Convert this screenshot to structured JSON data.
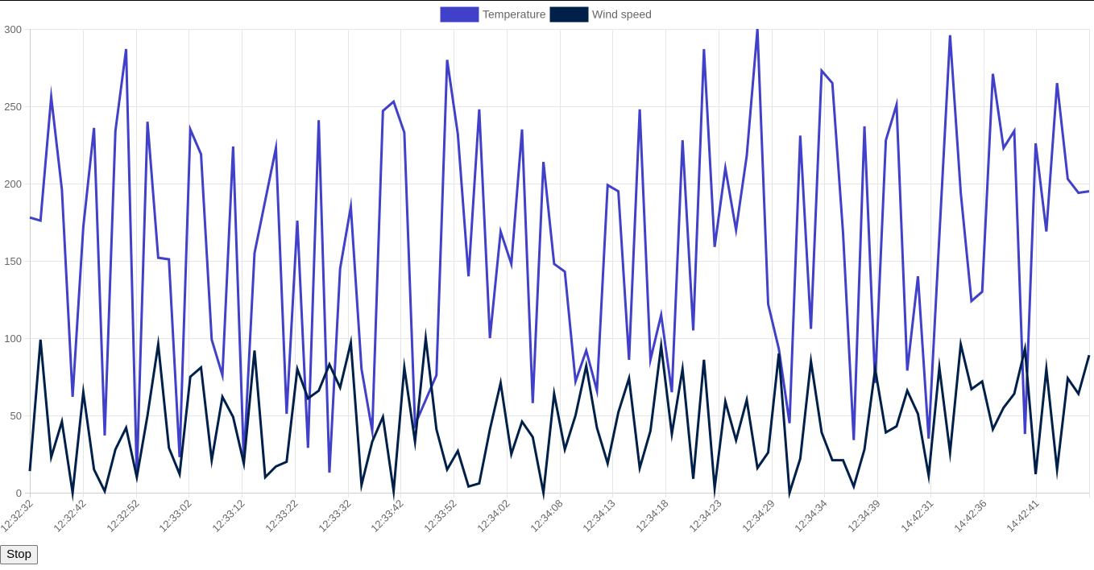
{
  "controls": {
    "stop_label": "Stop"
  },
  "chart_data": {
    "type": "line",
    "legend_position": "top-center",
    "grid": true,
    "ylim": [
      0,
      300
    ],
    "y_ticks": [
      0,
      50,
      100,
      150,
      200,
      250,
      300
    ],
    "x_tick_labels": [
      "12:32:32",
      "12:32:42",
      "12:32:52",
      "12:33:02",
      "12:33:12",
      "12:33:22",
      "12:33:32",
      "12:33:42",
      "12:33:52",
      "12:34:02",
      "12:34:08",
      "12:34:13",
      "12:34:18",
      "12:34:23",
      "12:34:29",
      "12:34:34",
      "12:34:39",
      "14:42:31",
      "14:42:36",
      "14:42:41"
    ],
    "series": [
      {
        "name": "Temperature",
        "color": "#4040c8",
        "values": [
          178,
          176,
          256,
          196,
          62,
          172,
          236,
          37,
          234,
          287,
          11,
          240,
          152,
          151,
          23,
          235,
          219,
          99,
          76,
          224,
          21,
          155,
          189,
          223,
          51,
          176,
          29,
          241,
          13,
          145,
          185,
          80,
          40,
          247,
          253,
          233,
          44,
          60,
          76,
          280,
          232,
          140,
          248,
          100,
          169,
          148,
          235,
          58,
          214,
          148,
          143,
          72,
          92,
          66,
          199,
          195,
          86,
          248,
          86,
          115,
          65,
          228,
          105,
          287,
          159,
          210,
          170,
          218,
          300,
          122,
          93,
          45,
          231,
          106,
          273,
          265,
          168,
          34,
          237,
          71,
          228,
          251,
          79,
          140,
          35,
          166,
          296,
          194,
          124,
          130,
          271,
          223,
          234,
          38,
          226,
          169,
          265,
          203,
          194,
          195
        ]
      },
      {
        "name": "Wind speed",
        "color": "#00204a",
        "values": [
          14,
          99,
          23,
          46,
          0,
          65,
          15,
          1,
          28,
          42,
          10,
          50,
          96,
          29,
          12,
          75,
          81,
          21,
          62,
          49,
          19,
          92,
          10,
          17,
          20,
          80,
          61,
          66,
          83,
          68,
          97,
          5,
          33,
          49,
          1,
          81,
          33,
          100,
          41,
          15,
          27,
          4,
          6,
          41,
          71,
          25,
          46,
          36,
          0,
          64,
          28,
          50,
          82,
          42,
          19,
          52,
          74,
          16,
          40,
          95,
          38,
          80,
          9,
          86,
          3,
          59,
          34,
          60,
          16,
          26,
          90,
          0,
          22,
          85,
          39,
          21,
          21,
          4,
          28,
          80,
          39,
          43,
          66,
          51,
          11,
          81,
          26,
          96,
          67,
          72,
          41,
          55,
          64,
          93,
          12,
          80,
          15,
          74,
          64,
          89
        ]
      }
    ]
  }
}
